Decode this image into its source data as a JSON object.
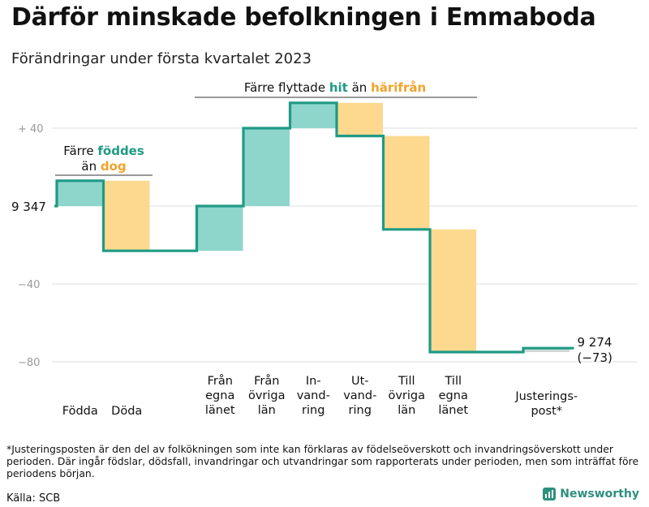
{
  "title": "Därför minskade befolkningen i Emmaboda",
  "subtitle": "Förändringar under första kvartalet 2023",
  "chart_data": {
    "type": "waterfall",
    "start_label": "9 347",
    "end_value_label": "9 274",
    "end_change_label": "(−73)",
    "y_ticks": [
      {
        "value": 40,
        "label": "+ 40"
      },
      {
        "value": 0,
        "label": ""
      },
      {
        "value": -40,
        "label": "−40"
      },
      {
        "value": -80,
        "label": "−80"
      }
    ],
    "ylim": [
      -85,
      55
    ],
    "steps": [
      {
        "key": "fodda",
        "label": [
          "Födda"
        ],
        "change": 13,
        "color": "#8ed6cc"
      },
      {
        "key": "doda",
        "label": [
          "Döda"
        ],
        "change": -36,
        "color": "#fcd98f"
      },
      {
        "key": "gap",
        "label": [],
        "change": 0,
        "color": null
      },
      {
        "key": "fran-egna-lanet",
        "label": [
          "Från",
          "egna",
          "länet"
        ],
        "change": 23,
        "color": "#8ed6cc"
      },
      {
        "key": "fran-ovriga-lan",
        "label": [
          "Från",
          "övriga",
          "län"
        ],
        "change": 40,
        "color": "#8ed6cc"
      },
      {
        "key": "invandring",
        "label": [
          "In-",
          "vand-",
          "ring"
        ],
        "change": 13,
        "color": "#8ed6cc"
      },
      {
        "key": "utvandring",
        "label": [
          "Ut-",
          "vand-",
          "ring"
        ],
        "change": -17,
        "color": "#fcd98f"
      },
      {
        "key": "till-ovriga-lan",
        "label": [
          "Till",
          "övriga",
          "län"
        ],
        "change": -48,
        "color": "#fcd98f"
      },
      {
        "key": "till-egna-lanet",
        "label": [
          "Till",
          "egna",
          "länet"
        ],
        "change": -63,
        "color": "#fcd98f"
      },
      {
        "key": "gap2",
        "label": [],
        "change": 0,
        "color": null
      },
      {
        "key": "justeringspost",
        "label": [
          "Justerings-",
          "post*"
        ],
        "change": 2,
        "color": "#cfd8d6"
      }
    ],
    "annotations": {
      "births": {
        "line1": "Färre",
        "highlight1": "föddes",
        "line2": "än",
        "highlight2": "dog"
      },
      "migration": {
        "prefix": "Färre flyttade",
        "highlight1": "hit",
        "middle": "än",
        "highlight2": "härifrån"
      }
    },
    "colors": {
      "increase": "#8ed6cc",
      "decrease": "#fcd98f",
      "line": "#1f9a85",
      "teal_text": "#1f9a85",
      "orange_text": "#f0a42a",
      "grid": "#dedede"
    }
  },
  "footnote": "*Justeringsposten är den del av folkökningen som inte kan förklaras av födelseöverskott och invandringsöverskott under perioden. Där ingår födslar, dödsfall, invandringar och utvandringar som rapporterats under perioden, men som inträffat före periodens början.",
  "source": "Källa: SCB",
  "brand": "Newsworthy"
}
